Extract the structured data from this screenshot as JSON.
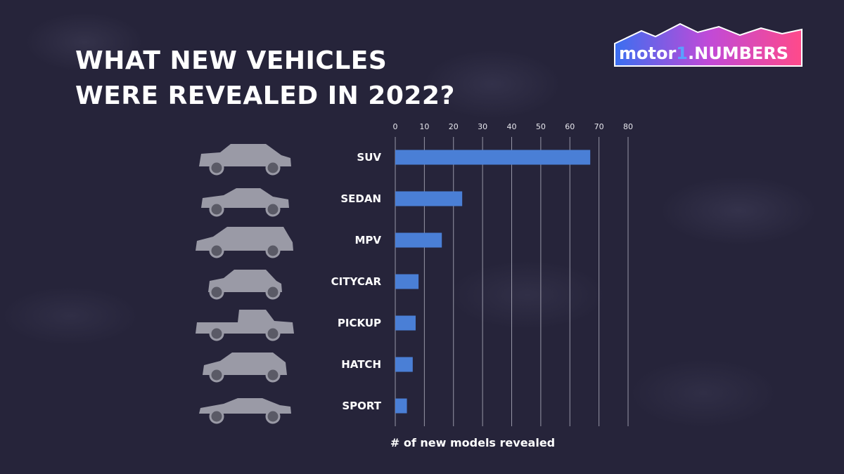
{
  "title": {
    "line1": "WHAT NEW VEHICLES",
    "line2": "WERE REVEALED IN 2022?"
  },
  "logo": {
    "text_main": "motor",
    "text_num": "1",
    "text_suffix": ".NUMBERS"
  },
  "colors": {
    "background": "#26243a",
    "bar": "#4a7fd6",
    "grid": "#c8c8d4",
    "icon": "#9a9aa6"
  },
  "chart_data": {
    "type": "bar",
    "orientation": "horizontal",
    "categories": [
      "SUV",
      "SEDAN",
      "MPV",
      "CITYCAR",
      "PICKUP",
      "HATCH",
      "SPORT"
    ],
    "values": [
      67,
      23,
      16,
      8,
      7,
      6,
      4
    ],
    "icons": [
      "suv-icon",
      "sedan-icon",
      "mpv-icon",
      "citycar-icon",
      "pickup-icon",
      "hatch-icon",
      "sport-icon"
    ],
    "xlabel": "# of new models revealed",
    "xlim": [
      0,
      80
    ],
    "xticks": [
      "0",
      "10",
      "20",
      "30",
      "40",
      "50",
      "60",
      "70",
      "80"
    ],
    "tick_position": "top",
    "grid": true
  }
}
